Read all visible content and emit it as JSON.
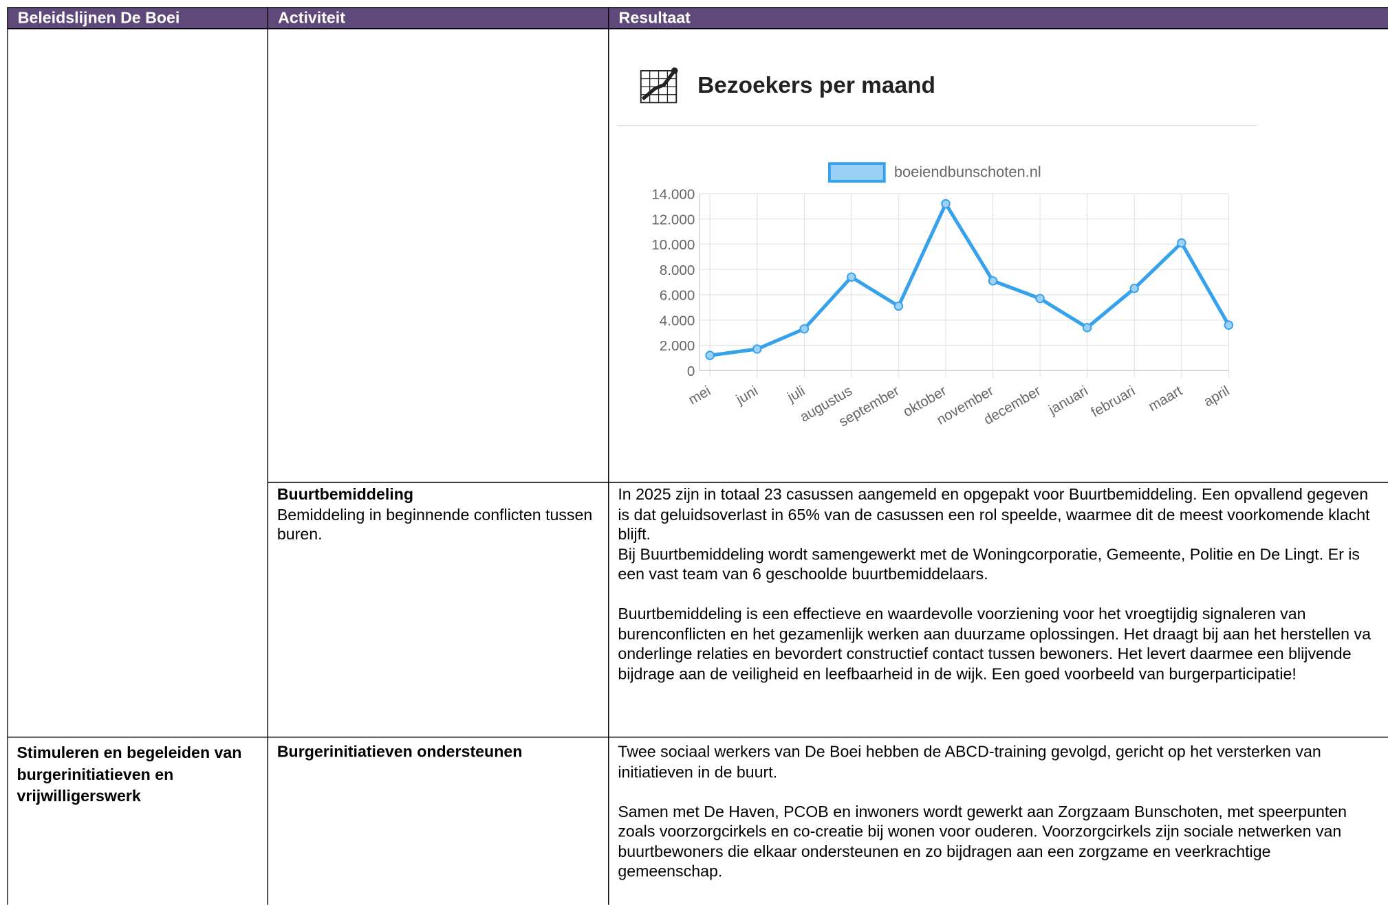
{
  "table": {
    "header": [
      "Beleidslijnen De Boei",
      "Activiteit",
      "Resultaat"
    ],
    "rows": [
      {
        "activity_title": "Buurtbemiddeling",
        "activity_text": "Bemiddeling in beginnende conflicten tussen buren.",
        "result": [
          "In 2025 zijn in totaal 23 casussen aangemeld en opgepakt voor Buurtbemiddeling. Een opvallend gegeven is dat geluidsoverlast in 65% van de casussen een rol speelde, waarmee dit de meest voorkomende klacht blijft.",
          "Bij Buurtbemiddeling wordt samengewerkt met de Woningcorporatie, Gemeente, Politie en De Lingt. Er is een vast team van 6 geschoolde buurtbemiddelaars.",
          "Buurtbemiddeling is een effectieve en waardevolle voorziening voor het vroegtijdig signaleren van burenconflicten en het gezamenlijk werken aan duurzame oplossingen. Het draagt bij aan het herstellen va onderlinge relaties en bevordert constructief contact tussen bewoners. Het levert daarmee een blijvende bijdrage aan de veiligheid en leefbaarheid in de wijk. Een goed voorbeeld van burgerparticipatie!"
        ]
      },
      {
        "policy": "Stimuleren en begeleiden van burgerinitiatieven en vrijwilligerswerk",
        "activity_title": "Burgerinitiatieven ondersteunen",
        "result": [
          "Twee sociaal werkers van De Boei hebben de ABCD-training gevolgd, gericht op het versterken van initiatieven in de buurt.",
          "Samen met De Haven, PCOB en inwoners wordt gewerkt aan Zorgzaam Bunschoten, met speerpunten zoals voorzorgcirkels en co-creatie bij wonen voor ouderen. Voorzorgcirkels zijn sociale netwerken van buurtbewoners die elkaar ondersteunen en zo bijdragen aan een zorgzame en veerkrachtige gemeenschap."
        ]
      }
    ]
  },
  "chart_data": {
    "type": "line",
    "title": "Bezoekers per maand",
    "categories": [
      "mei",
      "juni",
      "juli",
      "augustus",
      "september",
      "oktober",
      "november",
      "december",
      "januari",
      "februari",
      "maart",
      "april"
    ],
    "series": [
      {
        "name": "boeiendbunschoten.nl",
        "color": "#36a2eb",
        "values": [
          1200,
          1700,
          3300,
          7400,
          5100,
          13200,
          7100,
          5700,
          3400,
          6500,
          10100,
          3600
        ]
      }
    ],
    "ylim": [
      0,
      14000
    ],
    "yticks": [
      0,
      {
        "value": 2000,
        "label": "2.000"
      },
      {
        "value": 4000,
        "label": "4.000"
      },
      {
        "value": 6000,
        "label": "6.000"
      },
      {
        "value": 8000,
        "label": "8.000"
      },
      {
        "value": 10000,
        "label": "10.000"
      },
      {
        "value": 12000,
        "label": "12.000"
      },
      {
        "value": 14000,
        "label": "14.000"
      }
    ],
    "grid": true
  }
}
